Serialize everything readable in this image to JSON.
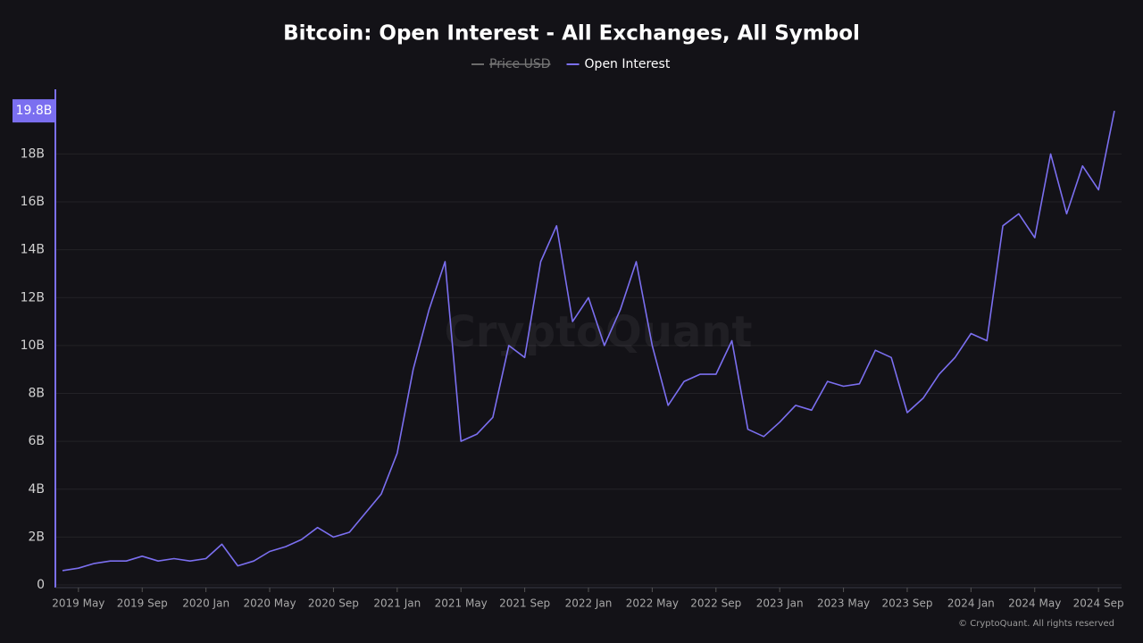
{
  "chart_data": {
    "type": "line",
    "title": "Bitcoin: Open Interest - All Exchanges, All Symbol",
    "watermark": "CryptoQuant",
    "footer": "© CryptoQuant. All rights reserved",
    "grid": true,
    "x": [
      "2019-04",
      "2019-05",
      "2019-06",
      "2019-07",
      "2019-08",
      "2019-09",
      "2019-10",
      "2019-11",
      "2019-12",
      "2020-01",
      "2020-02",
      "2020-03",
      "2020-04",
      "2020-05",
      "2020-06",
      "2020-07",
      "2020-08",
      "2020-09",
      "2020-10",
      "2020-11",
      "2020-12",
      "2021-01",
      "2021-02",
      "2021-03",
      "2021-04",
      "2021-05",
      "2021-06",
      "2021-07",
      "2021-08",
      "2021-09",
      "2021-10",
      "2021-11",
      "2021-12",
      "2022-01",
      "2022-02",
      "2022-03",
      "2022-04",
      "2022-05",
      "2022-06",
      "2022-07",
      "2022-08",
      "2022-09",
      "2022-10",
      "2022-11",
      "2022-12",
      "2023-01",
      "2023-02",
      "2023-03",
      "2023-04",
      "2023-05",
      "2023-06",
      "2023-07",
      "2023-08",
      "2023-09",
      "2023-10",
      "2023-11",
      "2023-12",
      "2024-01",
      "2024-02",
      "2024-03",
      "2024-04",
      "2024-05",
      "2024-06",
      "2024-07",
      "2024-08",
      "2024-09",
      "2024-10"
    ],
    "series": [
      {
        "name": "Price USD",
        "color": "#6b6b6b",
        "visible": false
      },
      {
        "name": "Open Interest",
        "color": "#7b6ff0",
        "visible": true,
        "values": [
          0.6,
          0.7,
          0.9,
          1.0,
          1.0,
          1.2,
          1.0,
          1.1,
          1.0,
          1.1,
          1.7,
          0.8,
          1.0,
          1.4,
          1.6,
          1.9,
          2.4,
          2.0,
          2.2,
          3.0,
          3.8,
          5.5,
          9.0,
          11.5,
          13.5,
          6.0,
          6.3,
          7.0,
          10.0,
          9.5,
          13.5,
          15.0,
          11.0,
          12.0,
          10.0,
          11.5,
          13.5,
          10.0,
          7.5,
          8.5,
          8.8,
          8.8,
          10.2,
          6.5,
          6.2,
          6.8,
          7.5,
          7.3,
          8.5,
          8.3,
          8.4,
          9.8,
          9.5,
          7.2,
          7.8,
          8.8,
          9.5,
          10.5,
          10.2,
          15.0,
          15.5,
          14.5,
          18.0,
          15.5,
          17.5,
          16.5,
          19.8
        ]
      }
    ],
    "highlight": {
      "value": 19.8,
      "label": "19.8B"
    },
    "xlim": [
      "2019-04",
      "2024-10"
    ],
    "xticks": [
      {
        "value": "2019-05",
        "label": "2019 May"
      },
      {
        "value": "2019-09",
        "label": "2019 Sep"
      },
      {
        "value": "2020-01",
        "label": "2020 Jan"
      },
      {
        "value": "2020-05",
        "label": "2020 May"
      },
      {
        "value": "2020-09",
        "label": "2020 Sep"
      },
      {
        "value": "2021-01",
        "label": "2021 Jan"
      },
      {
        "value": "2021-05",
        "label": "2021 May"
      },
      {
        "value": "2021-09",
        "label": "2021 Sep"
      },
      {
        "value": "2022-01",
        "label": "2022 Jan"
      },
      {
        "value": "2022-05",
        "label": "2022 May"
      },
      {
        "value": "2022-09",
        "label": "2022 Sep"
      },
      {
        "value": "2023-01",
        "label": "2023 Jan"
      },
      {
        "value": "2023-05",
        "label": "2023 May"
      },
      {
        "value": "2023-09",
        "label": "2023 Sep"
      },
      {
        "value": "2024-01",
        "label": "2024 Jan"
      },
      {
        "value": "2024-05",
        "label": "2024 May"
      },
      {
        "value": "2024-09",
        "label": "2024 Sep"
      }
    ],
    "ylim": [
      0,
      20.7
    ],
    "yticks": [
      0,
      {
        "value": 2,
        "label": "2B"
      },
      {
        "value": 4,
        "label": "4B"
      },
      {
        "value": 6,
        "label": "6B"
      },
      {
        "value": 8,
        "label": "8B"
      },
      {
        "value": 10,
        "label": "10B"
      },
      {
        "value": 12,
        "label": "12B"
      },
      {
        "value": 14,
        "label": "14B"
      },
      {
        "value": 16,
        "label": "16B"
      },
      {
        "value": 18,
        "label": "18B"
      }
    ]
  }
}
